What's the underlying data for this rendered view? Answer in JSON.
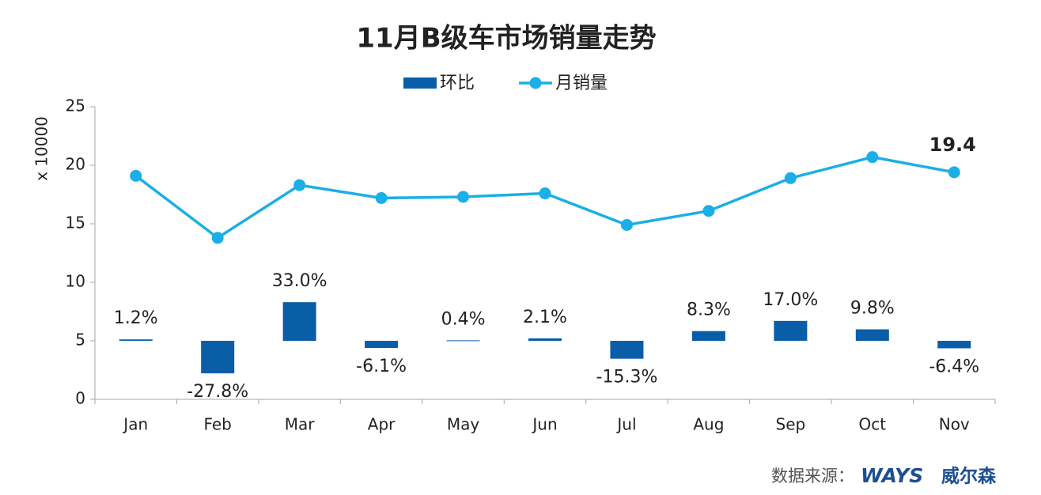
{
  "chart_data": {
    "type": "combo",
    "title": "11月B级车市场销量走势",
    "y_label": "x 10000",
    "categories": [
      "Jan",
      "Feb",
      "Mar",
      "Apr",
      "May",
      "Jun",
      "Jul",
      "Aug",
      "Sep",
      "Oct",
      "Nov"
    ],
    "series": [
      {
        "name": "环比",
        "type": "bar",
        "axis": "y2",
        "color": "#0a5ea8",
        "values": [
          1.2,
          -27.8,
          33.0,
          -6.1,
          0.4,
          2.1,
          -15.3,
          8.3,
          17.0,
          9.8,
          -6.4
        ],
        "value_labels": [
          "1.2%",
          "-27.8%",
          "33.0%",
          "-6.1%",
          "0.4%",
          "2.1%",
          "-15.3%",
          "8.3%",
          "17.0%",
          "9.8%",
          "-6.4%"
        ]
      },
      {
        "name": "月销量",
        "type": "line",
        "color": "#1aafe6",
        "values": [
          19.1,
          13.8,
          18.3,
          17.2,
          17.3,
          17.6,
          14.9,
          16.1,
          18.9,
          20.7,
          19.4
        ],
        "value_labels": [
          null,
          null,
          null,
          null,
          null,
          null,
          null,
          null,
          null,
          null,
          "19.4"
        ]
      }
    ],
    "ylim": [
      0,
      25
    ],
    "yticks": [
      0,
      5,
      10,
      15,
      20,
      25
    ],
    "y2lim": [
      -50,
      200
    ],
    "legend": "top",
    "source": "数据来源：",
    "logo": "WAYS",
    "logo_cn": "威尔森"
  }
}
